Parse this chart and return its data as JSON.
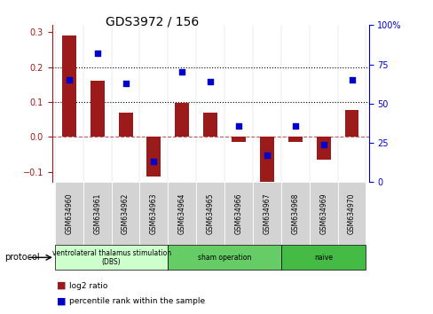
{
  "title": "GDS3972 / 156",
  "samples": [
    "GSM634960",
    "GSM634961",
    "GSM634962",
    "GSM634963",
    "GSM634964",
    "GSM634965",
    "GSM634966",
    "GSM634967",
    "GSM634968",
    "GSM634969",
    "GSM634970"
  ],
  "log2_ratio": [
    0.29,
    0.16,
    0.068,
    -0.115,
    0.098,
    0.07,
    -0.015,
    -0.13,
    -0.015,
    -0.065,
    0.077
  ],
  "percentile_rank": [
    65,
    82,
    63,
    13,
    70,
    64,
    36,
    17,
    36,
    24,
    65
  ],
  "bar_color": "#9b1a1a",
  "dot_color": "#0000cc",
  "ylim_left": [
    -0.13,
    0.32
  ],
  "ylim_right": [
    0,
    100
  ],
  "yticks_left": [
    -0.1,
    0.0,
    0.1,
    0.2,
    0.3
  ],
  "yticks_right": [
    0,
    25,
    50,
    75,
    100
  ],
  "hlines": [
    0.1,
    0.2
  ],
  "protocol_groups": [
    {
      "label": "ventrolateral thalamus stimulation\n(DBS)",
      "start": 0,
      "end": 3,
      "color": "#ccffcc"
    },
    {
      "label": "sham operation",
      "start": 4,
      "end": 7,
      "color": "#88dd88"
    },
    {
      "label": "naive",
      "start": 8,
      "end": 10,
      "color": "#44cc44"
    }
  ],
  "legend_entries": [
    "log2 ratio",
    "percentile rank within the sample"
  ],
  "protocol_label": "protocol"
}
